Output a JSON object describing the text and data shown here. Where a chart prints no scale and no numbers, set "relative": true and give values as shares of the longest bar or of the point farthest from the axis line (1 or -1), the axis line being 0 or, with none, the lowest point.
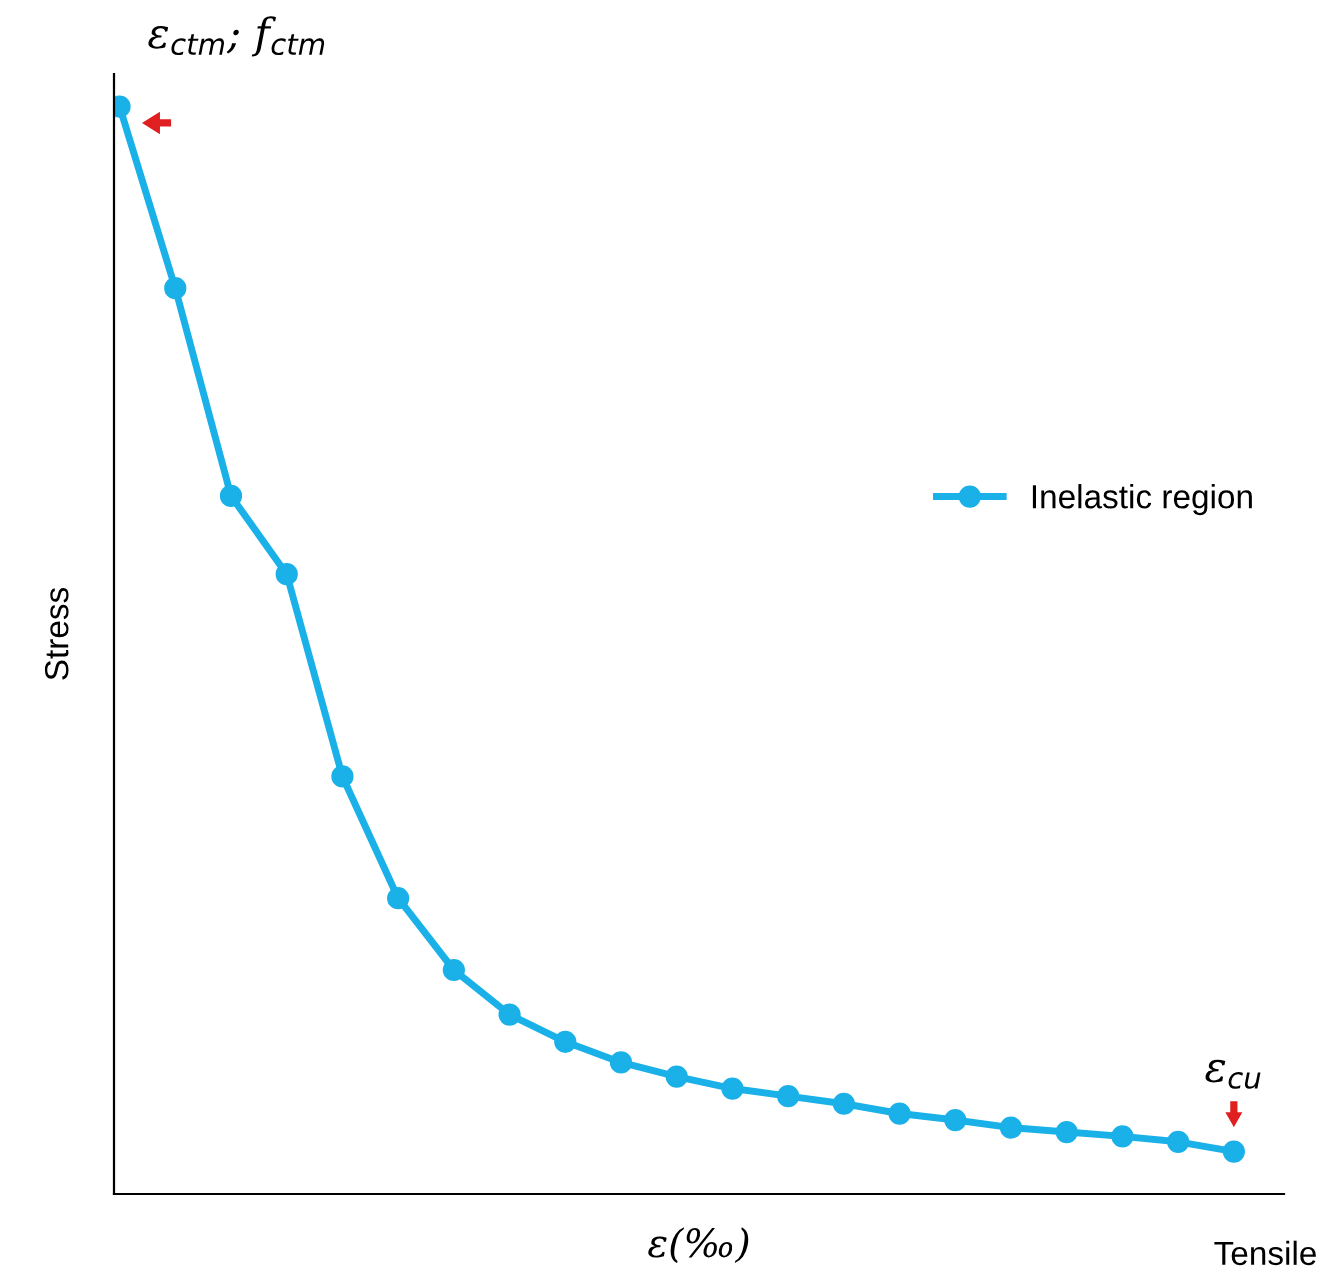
{
  "chart_data": {
    "type": "line",
    "relative": true,
    "xlabel": "ε(‰)",
    "ylabel": "Stress",
    "legend": "right",
    "marker": "circle",
    "line_style": "solid",
    "categories": [
      null,
      null,
      null,
      null,
      null,
      null,
      null,
      null,
      null,
      null,
      null,
      null,
      null,
      null,
      null,
      null,
      null,
      null,
      null,
      null,
      null
    ],
    "series": [
      {
        "name": "Inelastic region",
        "color": "#1ab0e8",
        "values": [
          1.0,
          0.833,
          0.642,
          0.57,
          0.384,
          0.272,
          0.206,
          0.165,
          0.14,
          0.121,
          0.108,
          0.097,
          0.09,
          0.083,
          0.074,
          0.068,
          0.061,
          0.057,
          0.053,
          0.048,
          0.039
        ]
      }
    ],
    "annotations": [
      "ε$_{ctm}$; f$_{ctm}$",
      "ε$_{cu}$",
      "Tensile"
    ]
  }
}
